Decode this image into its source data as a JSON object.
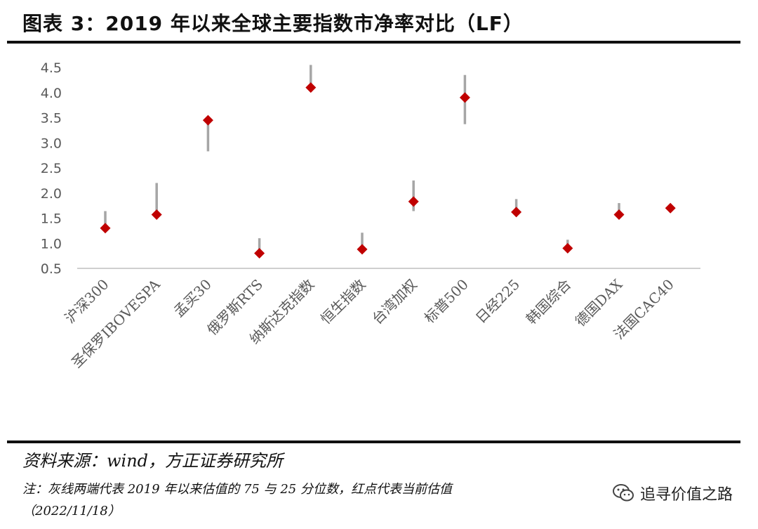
{
  "header": {
    "title": "图表 3：2019 年以来全球主要指数市净率对比（LF）"
  },
  "footer": {
    "source": "资料来源：wind，方正证券研究所",
    "note": "注：灰线两端代表 2019 年以来估值的 75 与 25 分位数，红点代表当前估值",
    "date": "（2022/11/18）",
    "watermark": "追寻价值之路"
  },
  "colors": {
    "marker": "#c00000",
    "range_line": "#a6a6a6",
    "axis": "#bfbfbf"
  },
  "chart_data": {
    "type": "scatter",
    "title": "",
    "xlabel": "",
    "ylabel": "",
    "ylim": [
      0.5,
      4.5
    ],
    "yticks": [
      "4.5",
      "4.0",
      "3.5",
      "3.0",
      "2.5",
      "2.0",
      "1.5",
      "1.0",
      "0.5"
    ],
    "grid": false,
    "legend": "none",
    "categories": [
      "沪深300",
      "圣保罗IBOVESPA",
      "孟买30",
      "俄罗斯RTS",
      "纳斯达克指数",
      "恒生指数",
      "台湾加权",
      "标普500",
      "日经225",
      "韩国综合",
      "德国DAX",
      "法国CAC40"
    ],
    "series": [
      {
        "values": [
          1.3,
          1.57,
          3.45,
          0.8,
          4.1,
          0.88,
          1.83,
          3.9,
          1.62,
          0.9,
          1.57,
          1.7
        ]
      }
    ],
    "range_low": [
      1.27,
      1.54,
      2.83,
      0.78,
      4.05,
      0.85,
      1.64,
      3.37,
      1.58,
      0.87,
      1.54,
      1.67
    ],
    "range_high": [
      1.64,
      2.2,
      3.48,
      1.1,
      4.55,
      1.21,
      2.25,
      4.35,
      1.88,
      1.07,
      1.8,
      1.72
    ]
  }
}
